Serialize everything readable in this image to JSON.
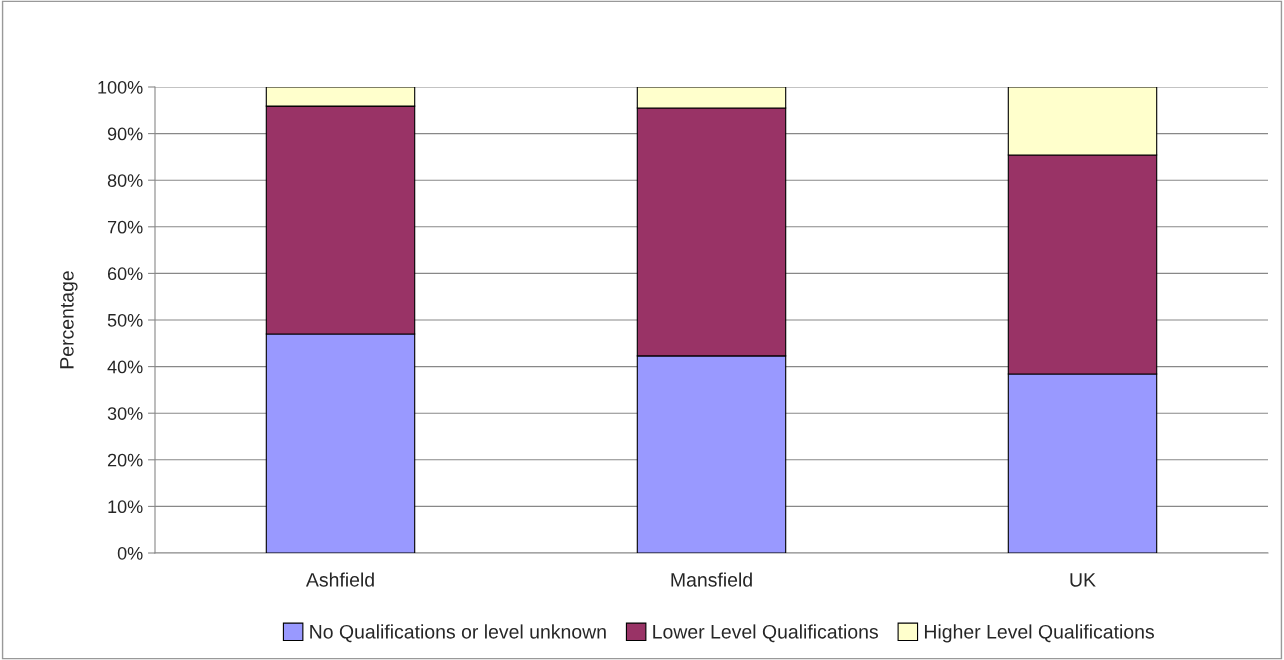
{
  "chart_data": {
    "type": "bar",
    "stacked": true,
    "ylabel": "Percentage",
    "categories": [
      "Ashfield",
      "Mansfield",
      "UK"
    ],
    "series": [
      {
        "name": "No Qualifications or level unknown",
        "color": "#9999ff",
        "values": [
          47.0,
          42.3,
          38.4
        ]
      },
      {
        "name": "Lower Level Qualifications",
        "color": "#993366",
        "values": [
          48.9,
          53.2,
          47.0
        ]
      },
      {
        "name": "Higher Level Qualifications",
        "color": "#ffffcc",
        "values": [
          4.1,
          4.5,
          14.6
        ]
      }
    ],
    "ylim": [
      0,
      100
    ],
    "yticks": [
      {
        "value": 0,
        "label": "0%"
      },
      {
        "value": 10,
        "label": "10%"
      },
      {
        "value": 20,
        "label": "20%"
      },
      {
        "value": 30,
        "label": "30%"
      },
      {
        "value": 40,
        "label": "40%"
      },
      {
        "value": 50,
        "label": "50%"
      },
      {
        "value": 60,
        "label": "60%"
      },
      {
        "value": 70,
        "label": "70%"
      },
      {
        "value": 80,
        "label": "80%"
      },
      {
        "value": 90,
        "label": "90%"
      },
      {
        "value": 100,
        "label": "100%"
      }
    ],
    "grid": "y",
    "legend": "bottom"
  }
}
